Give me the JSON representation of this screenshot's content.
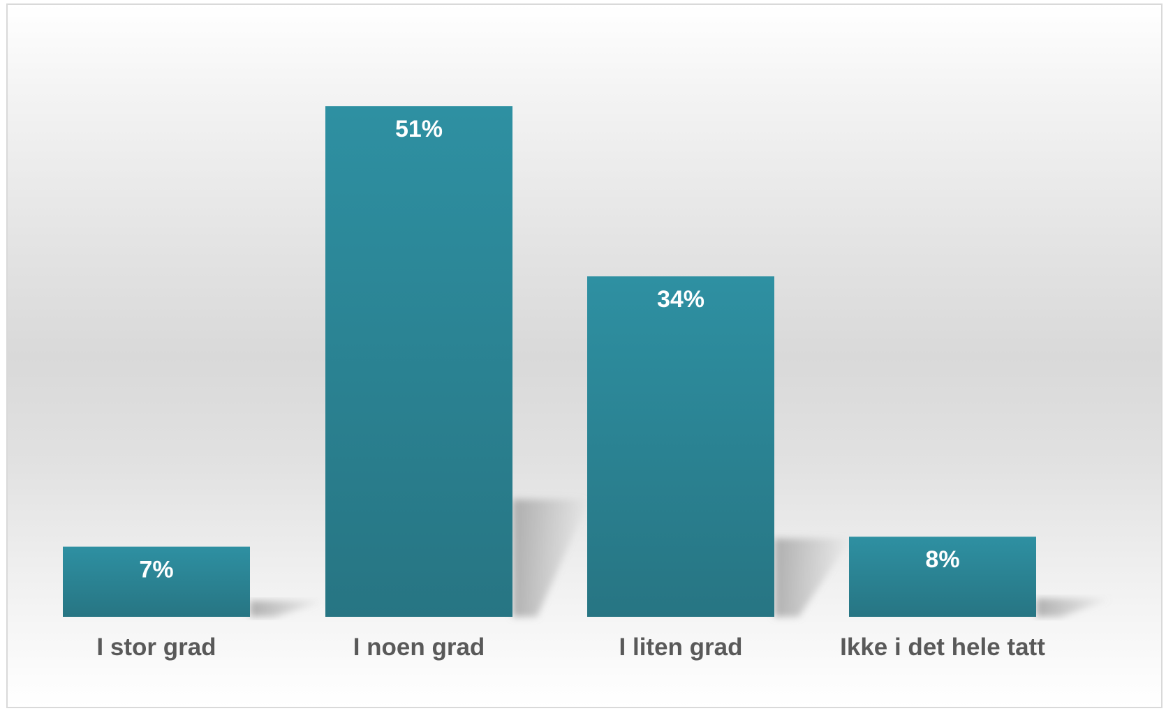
{
  "chart_data": {
    "type": "bar",
    "categories": [
      "I stor grad",
      "I noen grad",
      "I liten grad",
      "Ikke i det hele tatt"
    ],
    "values": [
      7,
      51,
      34,
      8
    ],
    "data_labels": [
      "7%",
      "51%",
      "34%",
      "8%"
    ],
    "unit": "%",
    "title": "",
    "xlabel": "",
    "ylabel": "",
    "ylim": [
      0,
      60
    ],
    "grid": false,
    "legend": "none",
    "colors": {
      "bar_top": "#2e90a2",
      "bar_bottom": "#277583",
      "data_label": "#ffffff",
      "category_label": "#595959",
      "shadow": "#9a9a9a"
    }
  }
}
